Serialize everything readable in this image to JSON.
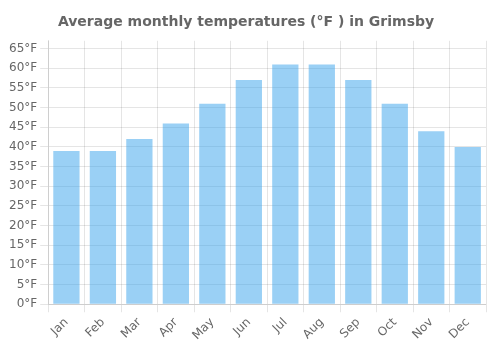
{
  "chart_data": {
    "type": "bar",
    "title": "Average monthly temperatures (°F ) in Grimsby",
    "categories": [
      "Jan",
      "Feb",
      "Mar",
      "Apr",
      "May",
      "Jun",
      "Jul",
      "Aug",
      "Sep",
      "Oct",
      "Nov",
      "Dec"
    ],
    "values": [
      39,
      39,
      42,
      46,
      51,
      57,
      61,
      61,
      57,
      51,
      44,
      40
    ],
    "ylim": [
      0,
      67
    ],
    "yticks": [
      {
        "value": 0,
        "label": "0°F"
      },
      {
        "value": 5,
        "label": "5°F"
      },
      {
        "value": 10,
        "label": "10°F"
      },
      {
        "value": 15,
        "label": "15°F"
      },
      {
        "value": 20,
        "label": "20°F"
      },
      {
        "value": 25,
        "label": "25°F"
      },
      {
        "value": 30,
        "label": "30°F"
      },
      {
        "value": 35,
        "label": "35°F"
      },
      {
        "value": 40,
        "label": "40°F"
      },
      {
        "value": 45,
        "label": "45°F"
      },
      {
        "value": 50,
        "label": "50°F"
      },
      {
        "value": 55,
        "label": "55°F"
      },
      {
        "value": 60,
        "label": "60°F"
      },
      {
        "value": 65,
        "label": "65°F"
      }
    ],
    "grid": true
  }
}
